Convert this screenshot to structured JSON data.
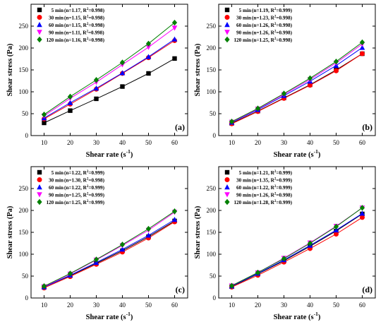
{
  "chart_data": [
    {
      "type": "scatter",
      "panel_label": "(a)",
      "xlabel": "Shear rate (s",
      "xlabel_sup": "-1",
      "xlabel_close": ")",
      "ylabel": "Shear stress (Pa)",
      "x_ticks": [
        "10",
        "20",
        "30",
        "40",
        "50",
        "60"
      ],
      "y_ticks": [
        "0",
        "50",
        "100",
        "150",
        "200",
        "250"
      ],
      "xlim": [
        5,
        65
      ],
      "ylim": [
        0,
        300
      ],
      "legend_position": "top-left",
      "x": [
        10,
        20,
        30,
        40,
        50,
        60
      ],
      "series": [
        {
          "name": "5 min",
          "params_a": "  (n=1.17, R",
          "params_b": "=0.998)",
          "color": "#000000",
          "marker": "square",
          "values": [
            29,
            57,
            84,
            112,
            142,
            176
          ]
        },
        {
          "name": "30 min",
          "params_a": "  (n=1.15, R",
          "params_b": "=0.998)",
          "color": "#ff0000",
          "marker": "circle",
          "values": [
            38,
            72,
            106,
            142,
            178,
            217
          ]
        },
        {
          "name": "60 min",
          "params_a": "  (n=1.15, R",
          "params_b": "=0.998)",
          "color": "#0000ff",
          "marker": "triangle-up",
          "values": [
            40,
            75,
            108,
            143,
            180,
            220
          ]
        },
        {
          "name": "90 min",
          "params_a": "  (n=1.11, R",
          "params_b": "=0.998)",
          "color": "#ff00ff",
          "marker": "triangle-down",
          "values": [
            45,
            85,
            122,
            162,
            202,
            246
          ]
        },
        {
          "name": "120 min",
          "params_a": "  (n=1.16, R",
          "params_b": "=0.998)",
          "color": "#008000",
          "marker": "diamond",
          "values": [
            48,
            89,
            127,
            167,
            210,
            258
          ]
        }
      ]
    },
    {
      "type": "scatter",
      "panel_label": "(b)",
      "xlabel": "Shear rate (s",
      "xlabel_sup": "-1",
      "xlabel_close": ")",
      "ylabel": "Shear stress (Pa)",
      "x_ticks": [
        "10",
        "20",
        "30",
        "40",
        "50",
        "60"
      ],
      "y_ticks": [
        "0",
        "50",
        "100",
        "150",
        "200",
        "250"
      ],
      "xlim": [
        5,
        65
      ],
      "ylim": [
        0,
        300
      ],
      "legend_position": "top-left",
      "x": [
        10,
        20,
        30,
        40,
        50,
        60
      ],
      "series": [
        {
          "name": "5 min",
          "params_a": "  (n=1.19, R",
          "params_b": "=0.999)",
          "color": "#000000",
          "marker": "square",
          "values": [
            28,
            56,
            86,
            116,
            150,
            187
          ]
        },
        {
          "name": "30 min",
          "params_a": "  (n=1.23, R",
          "params_b": "=0.998)",
          "color": "#ff0000",
          "marker": "circle",
          "values": [
            27,
            55,
            85,
            115,
            148,
            187
          ]
        },
        {
          "name": "60 min",
          "params_a": "  (n=1.26, R",
          "params_b": "=0.998)",
          "color": "#0000ff",
          "marker": "triangle-up",
          "values": [
            30,
            59,
            91,
            124,
            160,
            201
          ]
        },
        {
          "name": "90 min",
          "params_a": "  (n=1.26, R",
          "params_b": "=0.998)",
          "color": "#ff00ff",
          "marker": "triangle-down",
          "values": [
            31,
            61,
            94,
            128,
            166,
            209
          ]
        },
        {
          "name": "120 min",
          "params_a": "  (n=1.25, R",
          "params_b": "=0.998)",
          "color": "#008000",
          "marker": "diamond",
          "values": [
            32,
            62,
            96,
            131,
            169,
            213
          ]
        }
      ]
    },
    {
      "type": "scatter",
      "panel_label": "(c)",
      "xlabel": "Shear rate (s",
      "xlabel_sup": "-1",
      "xlabel_close": ")",
      "ylabel": "Shear stress (Pa)",
      "x_ticks": [
        "10",
        "20",
        "30",
        "40",
        "50",
        "60"
      ],
      "y_ticks": [
        "0",
        "50",
        "100",
        "150",
        "200",
        "250"
      ],
      "xlim": [
        5,
        65
      ],
      "ylim": [
        0,
        300
      ],
      "legend_position": "top-left",
      "x": [
        10,
        20,
        30,
        40,
        50,
        60
      ],
      "series": [
        {
          "name": "5 min",
          "params_a": "  (n=1.22, R",
          "params_b": "=0.999)",
          "color": "#000000",
          "marker": "square",
          "values": [
            25,
            51,
            79,
            108,
            140,
            176
          ]
        },
        {
          "name": "30 min",
          "params_a": "  (n=1.30, R",
          "params_b": "=0.998)",
          "color": "#ff0000",
          "marker": "circle",
          "values": [
            23,
            49,
            77,
            105,
            137,
            174
          ]
        },
        {
          "name": "60 min",
          "params_a": "  (n=1.22, R",
          "params_b": "=0.999)",
          "color": "#0000ff",
          "marker": "triangle-up",
          "values": [
            25,
            52,
            81,
            111,
            143,
            179
          ]
        },
        {
          "name": "90 min",
          "params_a": "  (n=1.25, R",
          "params_b": "=0.999)",
          "color": "#ff00ff",
          "marker": "triangle-down",
          "values": [
            26,
            55,
            87,
            120,
            155,
            196
          ]
        },
        {
          "name": "120 min",
          "params_a": "  (n=1.25, R",
          "params_b": "=0.999)",
          "color": "#008000",
          "marker": "diamond",
          "values": [
            27,
            56,
            88,
            122,
            158,
            198
          ]
        }
      ]
    },
    {
      "type": "scatter",
      "panel_label": "(d)",
      "xlabel": "Shear rate (s",
      "xlabel_sup": "-1",
      "xlabel_close": ")",
      "ylabel": "Shear stress (Pa)",
      "x_ticks": [
        "10",
        "20",
        "30",
        "40",
        "50",
        "60"
      ],
      "y_ticks": [
        "0",
        "50",
        "100",
        "150",
        "200",
        "250"
      ],
      "xlim": [
        5,
        65
      ],
      "ylim": [
        0,
        300
      ],
      "legend_position": "top-left",
      "x": [
        10,
        20,
        30,
        40,
        50,
        60
      ],
      "series": [
        {
          "name": "5 min",
          "params_a": "  (n=1.21, R",
          "params_b": "=0.999)",
          "color": "#000000",
          "marker": "square",
          "values": [
            26,
            55,
            85,
            118,
            153,
            192
          ]
        },
        {
          "name": "30 min",
          "params_a": "  (n=1.35, R",
          "params_b": "=0.999)",
          "color": "#ff0000",
          "marker": "circle",
          "values": [
            25,
            52,
            82,
            113,
            146,
            184
          ]
        },
        {
          "name": "60 min",
          "params_a": "  (n=1.22, R",
          "params_b": "=0.999)",
          "color": "#0000ff",
          "marker": "triangle-up",
          "values": [
            27,
            56,
            87,
            120,
            155,
            193
          ]
        },
        {
          "name": "90 min",
          "params_a": "  (n=1.26, R",
          "params_b": "=0.998)",
          "color": "#ff00ff",
          "marker": "triangle-down",
          "values": [
            28,
            58,
            91,
            126,
            164,
            206
          ]
        },
        {
          "name": "120 min",
          "params_a": "  (n=1.28, R",
          "params_b": "=0.999)",
          "color": "#008000",
          "marker": "diamond",
          "values": [
            28,
            58,
            90,
            125,
            163,
            206
          ]
        }
      ]
    }
  ]
}
